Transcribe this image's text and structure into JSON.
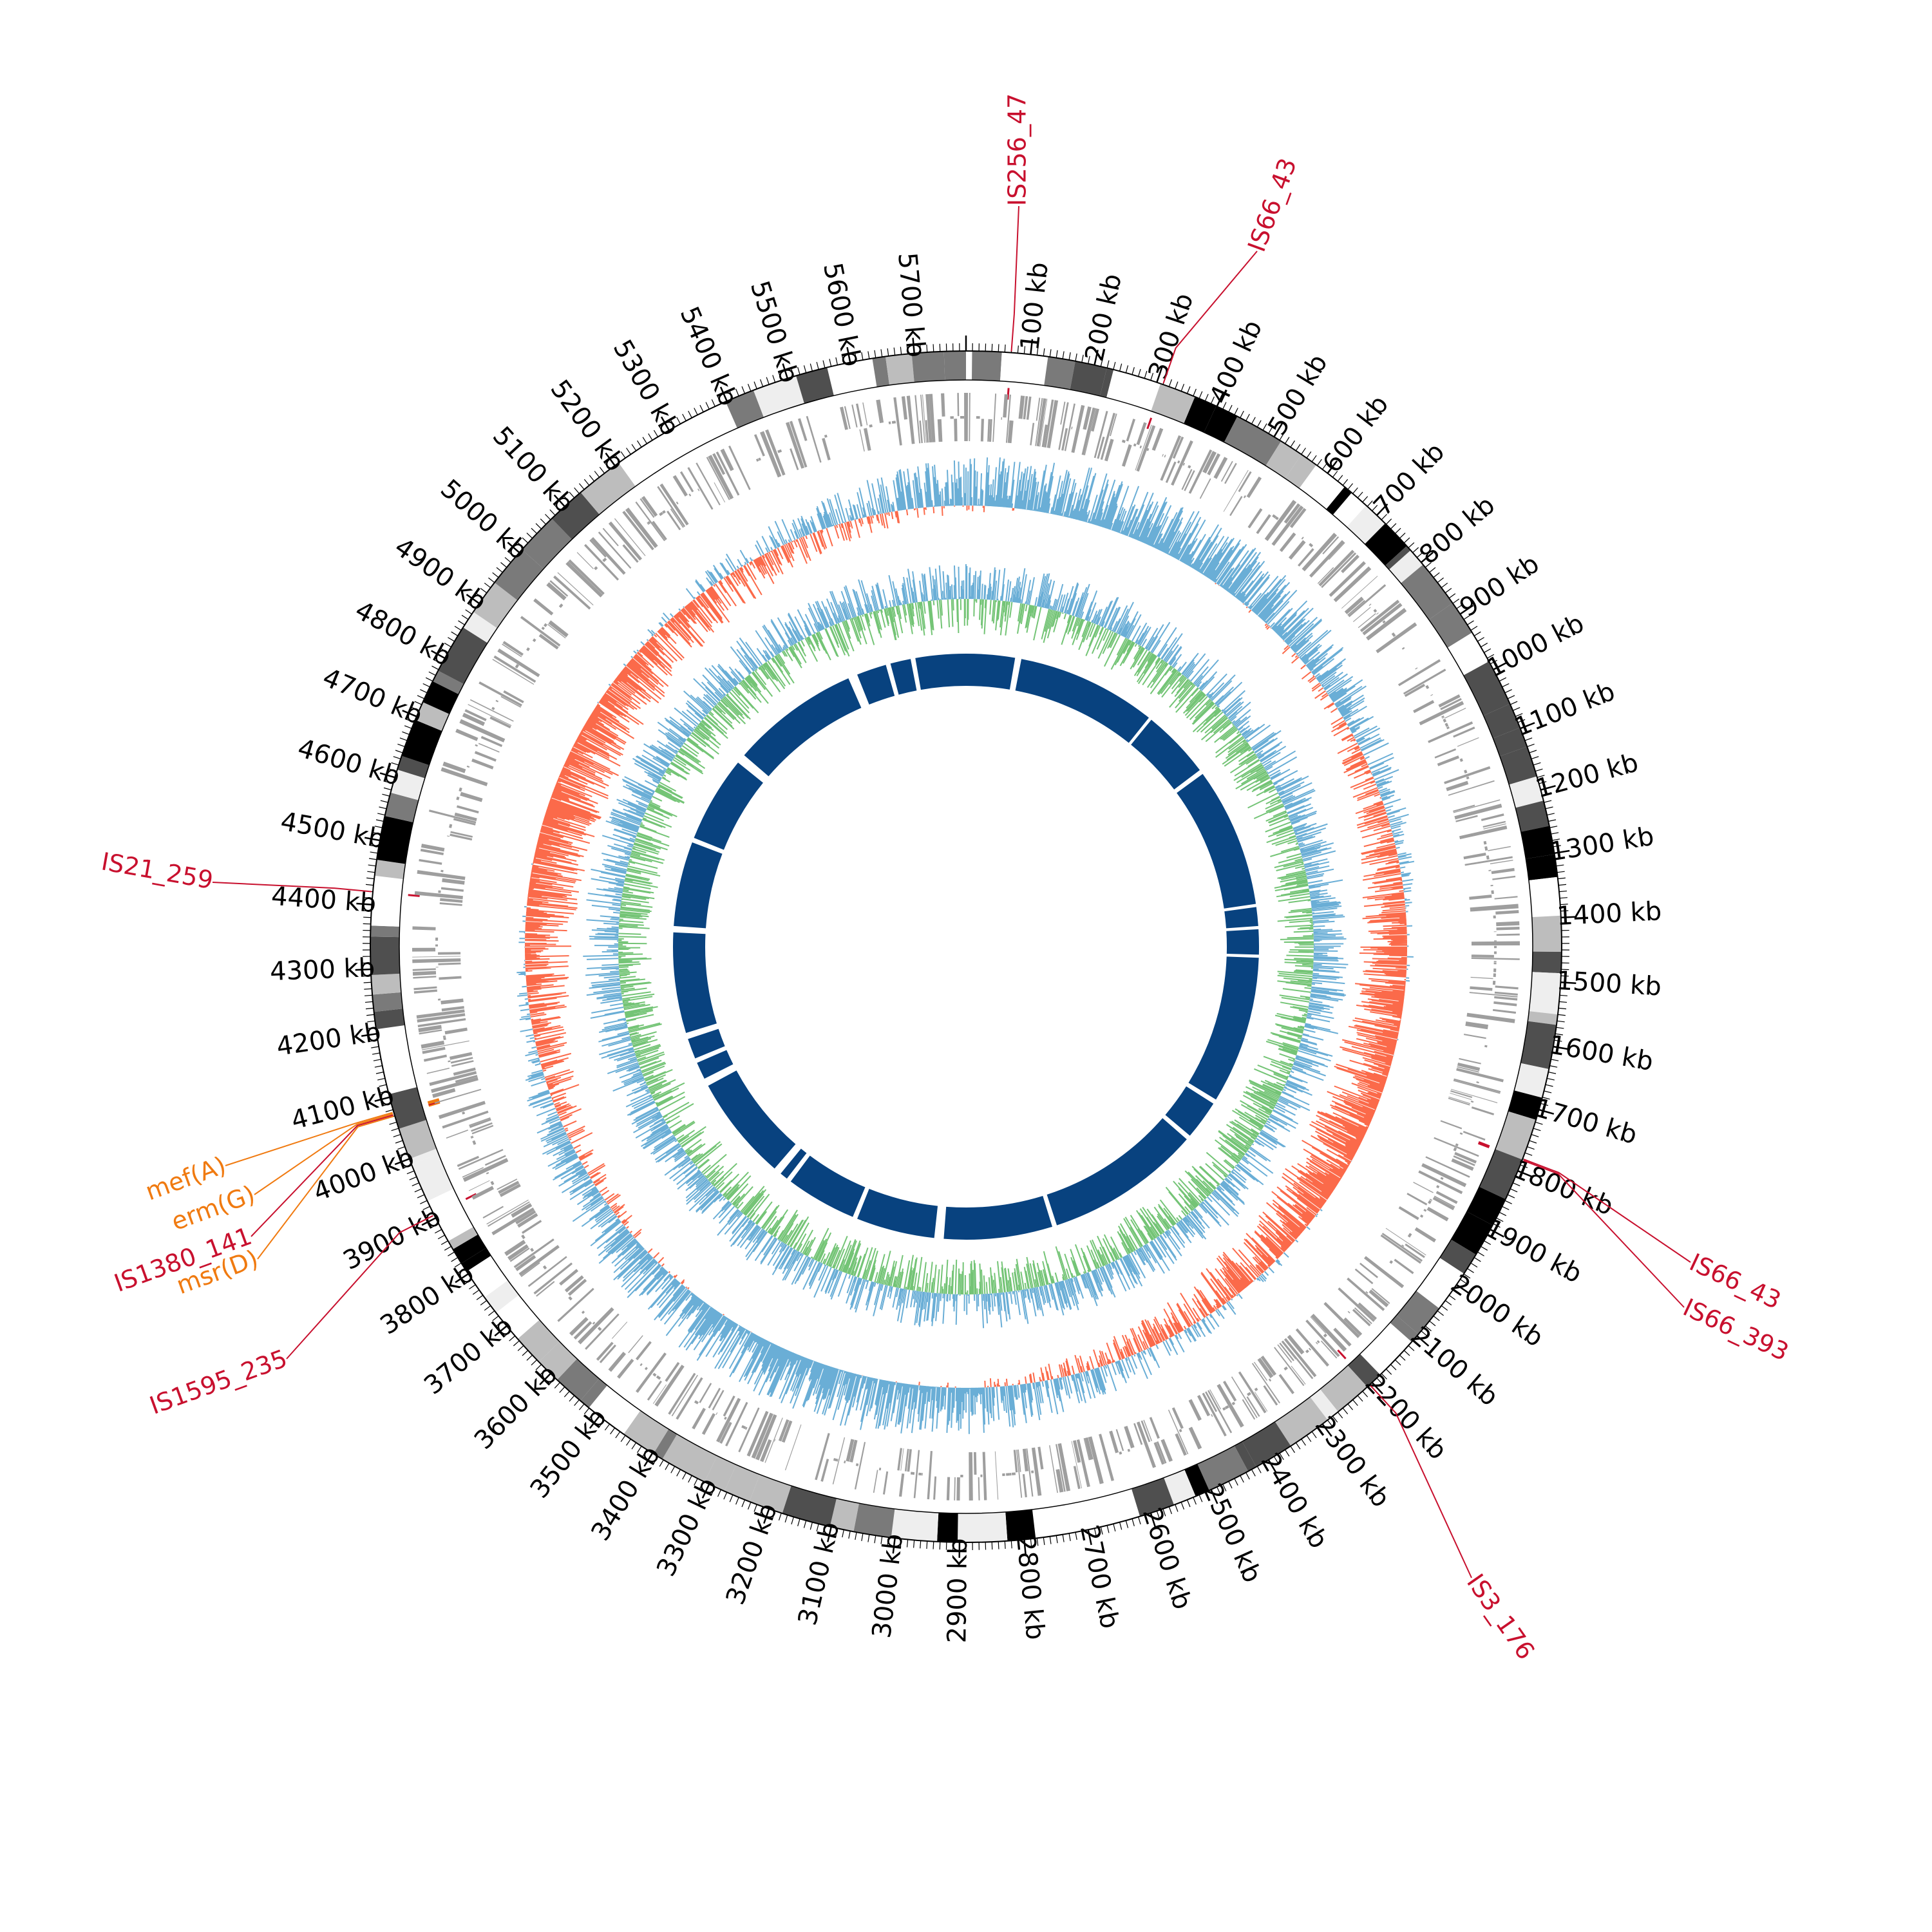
{
  "genome": {
    "length_kb": 5780,
    "tick_interval_kb": 100,
    "minor_tick_interval_kb": 10,
    "tick_unit": "kb",
    "colors": {
      "ideogram_bands": [
        "#ffffff",
        "#eeeeee",
        "#bdbdbd",
        "#7a7a7a",
        "#4f4f4f",
        "#000000"
      ],
      "gene_features": "#9e9e9e",
      "gc_skew_positive": "#6aaed6",
      "gc_skew_negative": "#fb6a4a",
      "gc_content": "#74c476",
      "blast_hits": "#08427f",
      "insertion_sequence": "#c8102e",
      "resistance_gene": "#f07a10"
    }
  },
  "ticks": [
    {
      "kb": 100,
      "label": "100 kb"
    },
    {
      "kb": 200,
      "label": "200 kb"
    },
    {
      "kb": 300,
      "label": "300 kb"
    },
    {
      "kb": 400,
      "label": "400 kb"
    },
    {
      "kb": 500,
      "label": "500 kb"
    },
    {
      "kb": 600,
      "label": "600 kb"
    },
    {
      "kb": 700,
      "label": "700 kb"
    },
    {
      "kb": 800,
      "label": "800 kb"
    },
    {
      "kb": 900,
      "label": "900 kb"
    },
    {
      "kb": 1000,
      "label": "1000 kb"
    },
    {
      "kb": 1100,
      "label": "1100 kb"
    },
    {
      "kb": 1200,
      "label": "1200 kb"
    },
    {
      "kb": 1300,
      "label": "1300 kb"
    },
    {
      "kb": 1400,
      "label": "1400 kb"
    },
    {
      "kb": 1500,
      "label": "1500 kb"
    },
    {
      "kb": 1600,
      "label": "1600 kb"
    },
    {
      "kb": 1700,
      "label": "1700 kb"
    },
    {
      "kb": 1800,
      "label": "1800 kb"
    },
    {
      "kb": 1900,
      "label": "1900 kb"
    },
    {
      "kb": 2000,
      "label": "2000 kb"
    },
    {
      "kb": 2100,
      "label": "2100 kb"
    },
    {
      "kb": 2200,
      "label": "2200 kb"
    },
    {
      "kb": 2300,
      "label": "2300 kb"
    },
    {
      "kb": 2400,
      "label": "2400 kb"
    },
    {
      "kb": 2500,
      "label": "2500 kb"
    },
    {
      "kb": 2600,
      "label": "2600 kb"
    },
    {
      "kb": 2700,
      "label": "2700 kb"
    },
    {
      "kb": 2800,
      "label": "2800 kb"
    },
    {
      "kb": 2900,
      "label": "2900 kb"
    },
    {
      "kb": 3000,
      "label": "3000 kb"
    },
    {
      "kb": 3100,
      "label": "3100 kb"
    },
    {
      "kb": 3200,
      "label": "3200 kb"
    },
    {
      "kb": 3300,
      "label": "3300 kb"
    },
    {
      "kb": 3400,
      "label": "3400 kb"
    },
    {
      "kb": 3500,
      "label": "3500 kb"
    },
    {
      "kb": 3600,
      "label": "3600 kb"
    },
    {
      "kb": 3700,
      "label": "3700 kb"
    },
    {
      "kb": 3800,
      "label": "3800 kb"
    },
    {
      "kb": 3900,
      "label": "3900 kb"
    },
    {
      "kb": 4000,
      "label": "4000 kb"
    },
    {
      "kb": 4100,
      "label": "4100 kb"
    },
    {
      "kb": 4200,
      "label": "4200 kb"
    },
    {
      "kb": 4300,
      "label": "4300 kb"
    },
    {
      "kb": 4400,
      "label": "4400 kb"
    },
    {
      "kb": 4500,
      "label": "4500 kb"
    },
    {
      "kb": 4600,
      "label": "4600 kb"
    },
    {
      "kb": 4700,
      "label": "4700 kb"
    },
    {
      "kb": 4800,
      "label": "4800 kb"
    },
    {
      "kb": 4900,
      "label": "4900 kb"
    },
    {
      "kb": 5000,
      "label": "5000 kb"
    },
    {
      "kb": 5100,
      "label": "5100 kb"
    },
    {
      "kb": 5200,
      "label": "5200 kb"
    },
    {
      "kb": 5300,
      "label": "5300 kb"
    },
    {
      "kb": 5400,
      "label": "5400 kb"
    },
    {
      "kb": 5500,
      "label": "5500 kb"
    },
    {
      "kb": 5600,
      "label": "5600 kb"
    },
    {
      "kb": 5700,
      "label": "5700 kb"
    }
  ],
  "features": [
    {
      "label": "IS256_47",
      "kb": 70,
      "type": "insertion_sequence"
    },
    {
      "label": "IS66_43",
      "kb": 310,
      "type": "insertion_sequence"
    },
    {
      "label": "IS66_43",
      "kb": 1780,
      "type": "insertion_sequence"
    },
    {
      "label": "IS66_393",
      "kb": 1782,
      "type": "insertion_sequence"
    },
    {
      "label": "IS3_176",
      "kb": 2205,
      "type": "insertion_sequence"
    },
    {
      "label": "IS1595_235",
      "kb": 3905,
      "type": "insertion_sequence"
    },
    {
      "label": "msr(D)",
      "kb": 4070,
      "type": "resistance_gene"
    },
    {
      "label": "IS1380_141",
      "kb": 4072,
      "type": "insertion_sequence"
    },
    {
      "label": "erm(G)",
      "kb": 4074,
      "type": "resistance_gene"
    },
    {
      "label": "mef(A)",
      "kb": 4076,
      "type": "resistance_gene"
    },
    {
      "label": "IS21_259",
      "kb": 4420,
      "type": "insertion_sequence"
    }
  ]
}
